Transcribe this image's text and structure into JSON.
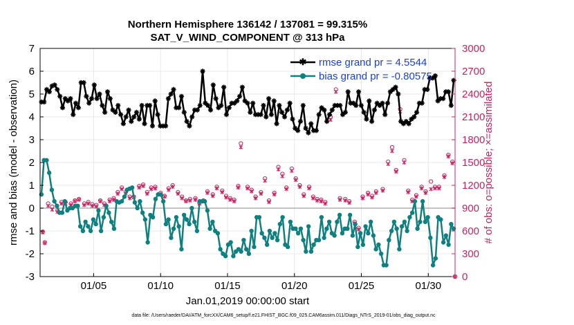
{
  "chart_data": {
    "type": "line",
    "title_line1": "Northern Hemisphere 136142 / 137081 = 99.315%",
    "title_line2": "SAT_V_WIND_COMPONENT @ 313 hPa",
    "xlabel": "Jan.01,2019 00:00:00 start",
    "ylabel_left": "rmse and bias (model - observation)",
    "ylabel_right": "# of obs: o=possible; ×=assimilated",
    "ylim_left": [
      -3,
      7
    ],
    "ylim_right": [
      0,
      3000
    ],
    "yticks_left": [
      "-3",
      "-2",
      "-1",
      "0",
      "1",
      "2",
      "3",
      "4",
      "5",
      "6",
      "7"
    ],
    "yticks_right": [
      "0",
      "300",
      "600",
      "900",
      "1200",
      "1500",
      "1800",
      "2100",
      "2400",
      "2700",
      "3000"
    ],
    "xlim_days": [
      1.0,
      32.0
    ],
    "xtick_days": [
      5,
      10,
      15,
      20,
      25,
      30
    ],
    "xtick_labels": [
      "01/05",
      "01/10",
      "01/15",
      "01/20",
      "01/25",
      "01/30"
    ],
    "footnote": "data file: /Users/raeder/DAI/ATM_forcXX/CAM6_setup/f.e21.FHIST_BGC.f09_025.CAM6assim.011/Diags_NTrS_2019-01/obs_diag_output.nc",
    "colors": {
      "rmse": "#000000",
      "bias": "#0f8080",
      "obs": "#cc1f5e",
      "legend_text": "#1a3fe0",
      "zero_line": "#b0b0b0",
      "grid": "#e8e8e8"
    },
    "series": [
      {
        "name": "rmse",
        "legend": "rmse grand pr = 4.5544",
        "values": [
          4.65,
          4.65,
          5.2,
          5.1,
          5.35,
          5.4,
          5.2,
          4.9,
          4.4,
          4.8,
          4.7,
          4.8,
          4.1,
          4.6,
          4.4,
          5.5,
          5.5,
          4.9,
          4.6,
          4.8,
          5.4,
          4.8,
          5.0,
          4.5,
          4.2,
          5.1,
          4.8,
          4.3,
          4.2,
          4.5,
          4.1,
          3.7,
          4.0,
          4.3,
          3.8,
          4.0,
          4.2,
          3.9,
          4.5,
          3.7,
          4.5,
          4.5,
          3.6,
          4.7,
          4.1,
          3.6,
          3.6,
          3.6,
          4.8,
          5.0,
          5.2,
          4.4,
          4.4,
          4.9,
          4.2,
          3.8,
          3.6,
          4.0,
          4.3,
          4.3,
          4.5,
          6.0,
          4.6,
          4.5,
          4.3,
          5.4,
          4.8,
          4.4,
          4.5,
          5.3,
          4.1,
          4.4,
          4.6,
          4.6,
          4.7,
          4.9,
          5.3,
          4.7,
          4.6,
          4.2,
          4.6,
          4.1,
          4.1,
          4.1,
          4.5,
          4.0,
          4.8,
          4.1,
          4.7,
          3.7,
          4.5,
          4.2,
          4.0,
          4.3,
          4.6,
          3.9,
          3.5,
          3.4,
          3.8,
          4.5,
          3.5,
          3.3,
          3.7,
          3.4,
          3.4,
          4.1,
          4.4,
          4.3,
          3.8,
          4.1,
          4.3,
          4.5,
          4.5,
          4.5,
          4.1,
          4.2,
          5.1,
          4.6,
          4.6,
          4.5,
          5.1,
          4.5,
          4.2,
          3.9,
          4.7,
          3.8,
          4.3,
          4.6,
          4.5,
          4.6,
          4.1,
          4.6,
          5.1,
          5.2,
          5.3,
          5.0,
          3.8,
          3.7,
          3.8,
          3.7,
          3.9,
          4.0,
          4.2,
          4.6,
          4.6,
          5.2,
          5.2,
          5.7,
          5.7,
          5.8,
          4.7,
          4.8,
          4.8,
          5.1,
          5.1,
          4.5,
          5.6
        ]
      },
      {
        "name": "bias",
        "legend": "bias grand pr = -0.80575",
        "values": [
          0.6,
          2.1,
          2.1,
          1.55,
          0.8,
          0.3,
          0.1,
          -0.2,
          -0.2,
          0.3,
          -0.1,
          0.0,
          0.0,
          0.1,
          0.1,
          -0.8,
          -1.0,
          -0.6,
          -0.8,
          -1.0,
          -0.5,
          -0.7,
          -0.1,
          -1.0,
          -0.4,
          0.1,
          -0.2,
          -0.6,
          -0.9,
          0.3,
          0.25,
          0.3,
          0.5,
          0.8,
          0.85,
          0.9,
          0.25,
          0.0,
          0.3,
          -0.2,
          -0.5,
          -1.5,
          -0.3,
          -0.4,
          0.4,
          0.6,
          0.6,
          0.3,
          -0.7,
          -0.5,
          -1.3,
          -0.9,
          -0.4,
          -0.8,
          -1.8,
          -0.3,
          -0.5,
          -0.7,
          0.0,
          -0.6,
          -1.0,
          0.3,
          0.3,
          0.3,
          -0.1,
          -0.9,
          -0.6,
          -1.0,
          -1.1,
          -1.8,
          -2.0,
          -2.1,
          -1.6,
          -1.5,
          -2.1,
          -1.9,
          -1.8,
          -1.9,
          -1.4,
          -1.8,
          -2.0,
          -1.0,
          -1.7,
          -0.4,
          -0.4,
          -1.1,
          -1.3,
          -1.6,
          -1.0,
          -1.3,
          -1.1,
          -1.4,
          -0.7,
          -0.4,
          -1.6,
          -1.7,
          -0.6,
          -0.9,
          -0.9,
          -1.1,
          -0.9,
          -1.4,
          -1.9,
          -0.8,
          -1.9,
          -1.6,
          -1.4,
          -1.4,
          -0.4,
          -1.3,
          -0.9,
          -0.6,
          -1.1,
          -1.2,
          -0.6,
          -0.3,
          -1.1,
          -0.9,
          -0.9,
          -0.3,
          -1.2,
          -0.7,
          -1.7,
          -1.1,
          -1.6,
          -0.8,
          -1.1,
          -0.6,
          -1.2,
          -1.8,
          -1.6,
          -2.0,
          -2.5,
          -2.5,
          -1.4,
          -1.0,
          -0.6,
          -0.9,
          -1.8,
          -0.8,
          -0.6,
          -1.0,
          -0.4,
          -0.2,
          0.3,
          -0.9,
          -0.6,
          0.3,
          -0.6,
          -0.4,
          -1.3,
          -2.5,
          -2.2,
          -0.4,
          -0.5,
          -1.5,
          -1.2,
          -1.6,
          -0.7,
          -0.9
        ]
      }
    ],
    "obs_possible": [
      [
        1.2,
        590
      ],
      [
        1.35,
        450
      ],
      [
        1.6,
        960
      ],
      [
        1.9,
        920
      ],
      [
        2.3,
        870
      ],
      [
        2.6,
        980
      ],
      [
        2.9,
        980
      ],
      [
        3.3,
        960
      ],
      [
        3.6,
        1000
      ],
      [
        3.9,
        1020
      ],
      [
        4.3,
        960
      ],
      [
        4.6,
        980
      ],
      [
        4.9,
        950
      ],
      [
        5.2,
        940
      ],
      [
        5.5,
        1000
      ],
      [
        5.8,
        960
      ],
      [
        6.2,
        1010
      ],
      [
        6.5,
        1030
      ],
      [
        6.8,
        1110
      ],
      [
        7.1,
        1170
      ],
      [
        7.4,
        1110
      ],
      [
        7.7,
        1050
      ],
      [
        8.0,
        1050
      ],
      [
        8.4,
        1190
      ],
      [
        8.7,
        1210
      ],
      [
        9.0,
        1110
      ],
      [
        9.3,
        1170
      ],
      [
        9.6,
        1180
      ],
      [
        10.0,
        1100
      ],
      [
        10.3,
        1060
      ],
      [
        10.6,
        1160
      ],
      [
        10.9,
        1200
      ],
      [
        11.3,
        1110
      ],
      [
        11.6,
        1050
      ],
      [
        11.9,
        1000
      ],
      [
        12.2,
        1020
      ],
      [
        12.6,
        1030
      ],
      [
        12.9,
        970
      ],
      [
        13.2,
        1000
      ],
      [
        13.5,
        1120
      ],
      [
        13.9,
        1080
      ],
      [
        14.2,
        1180
      ],
      [
        14.6,
        1130
      ],
      [
        14.9,
        1060
      ],
      [
        15.2,
        1030
      ],
      [
        15.5,
        1010
      ],
      [
        15.8,
        1190
      ],
      [
        16.0,
        1750
      ],
      [
        16.5,
        1180
      ],
      [
        16.8,
        1140
      ],
      [
        17.1,
        1050
      ],
      [
        17.5,
        1110
      ],
      [
        17.8,
        1290
      ],
      [
        18.1,
        1000
      ],
      [
        18.5,
        1100
      ],
      [
        18.8,
        1440
      ],
      [
        19.1,
        1350
      ],
      [
        19.4,
        1170
      ],
      [
        19.8,
        1420
      ],
      [
        20.1,
        1290
      ],
      [
        20.4,
        1200
      ],
      [
        20.7,
        1080
      ],
      [
        21.1,
        1180
      ],
      [
        21.4,
        1050
      ],
      [
        21.7,
        1020
      ],
      [
        22.0,
        1010
      ],
      [
        22.3,
        980
      ],
      [
        22.7,
        2100
      ],
      [
        23.1,
        2460
      ],
      [
        23.4,
        1030
      ],
      [
        23.8,
        1020
      ],
      [
        24.1,
        990
      ],
      [
        24.5,
        720
      ],
      [
        24.8,
        640
      ],
      [
        25.1,
        1050
      ],
      [
        25.5,
        1100
      ],
      [
        25.8,
        1060
      ],
      [
        26.1,
        1120
      ],
      [
        26.6,
        1150
      ],
      [
        27.0,
        1510
      ],
      [
        27.3,
        1700
      ],
      [
        27.6,
        1400
      ],
      [
        27.9,
        2200
      ],
      [
        28.2,
        1530
      ],
      [
        28.5,
        1130
      ],
      [
        28.8,
        1010
      ],
      [
        29.1,
        1070
      ],
      [
        29.5,
        1180
      ],
      [
        29.8,
        1120
      ],
      [
        30.2,
        1250
      ],
      [
        30.5,
        1180
      ],
      [
        30.8,
        1180
      ],
      [
        31.2,
        1330
      ],
      [
        31.5,
        1600
      ],
      [
        31.8,
        1510
      ],
      [
        32.0,
        0
      ]
    ],
    "obs_assimilated": [
      [
        1.2,
        580
      ],
      [
        1.35,
        440
      ],
      [
        1.6,
        930
      ],
      [
        1.9,
        880
      ],
      [
        2.3,
        850
      ],
      [
        2.6,
        960
      ],
      [
        2.9,
        960
      ],
      [
        3.3,
        940
      ],
      [
        3.6,
        990
      ],
      [
        3.9,
        1010
      ],
      [
        4.3,
        940
      ],
      [
        4.6,
        960
      ],
      [
        4.9,
        930
      ],
      [
        5.2,
        920
      ],
      [
        5.5,
        990
      ],
      [
        5.8,
        940
      ],
      [
        6.2,
        990
      ],
      [
        6.5,
        1010
      ],
      [
        6.8,
        1090
      ],
      [
        7.1,
        1150
      ],
      [
        7.4,
        1090
      ],
      [
        7.7,
        1030
      ],
      [
        8.0,
        1040
      ],
      [
        8.4,
        1170
      ],
      [
        8.7,
        1190
      ],
      [
        9.0,
        1090
      ],
      [
        9.3,
        1150
      ],
      [
        9.6,
        1160
      ],
      [
        10.0,
        1080
      ],
      [
        10.3,
        1050
      ],
      [
        10.6,
        1140
      ],
      [
        10.9,
        1180
      ],
      [
        11.3,
        1090
      ],
      [
        11.6,
        1030
      ],
      [
        11.9,
        990
      ],
      [
        12.2,
        1000
      ],
      [
        12.6,
        1010
      ],
      [
        12.9,
        960
      ],
      [
        13.2,
        990
      ],
      [
        13.5,
        1100
      ],
      [
        13.9,
        1060
      ],
      [
        14.2,
        1160
      ],
      [
        14.6,
        1110
      ],
      [
        14.9,
        1040
      ],
      [
        15.2,
        1010
      ],
      [
        15.5,
        990
      ],
      [
        15.8,
        1170
      ],
      [
        16.0,
        1700
      ],
      [
        16.5,
        1160
      ],
      [
        16.8,
        1120
      ],
      [
        17.1,
        1030
      ],
      [
        17.5,
        1090
      ],
      [
        17.8,
        1260
      ],
      [
        18.1,
        980
      ],
      [
        18.5,
        1080
      ],
      [
        18.8,
        1410
      ],
      [
        19.1,
        1320
      ],
      [
        19.4,
        1150
      ],
      [
        19.8,
        1390
      ],
      [
        20.1,
        1270
      ],
      [
        20.4,
        1180
      ],
      [
        20.7,
        1060
      ],
      [
        21.1,
        1160
      ],
      [
        21.4,
        1030
      ],
      [
        21.7,
        1000
      ],
      [
        22.0,
        990
      ],
      [
        22.3,
        960
      ],
      [
        22.7,
        2060
      ],
      [
        23.1,
        2430
      ],
      [
        23.4,
        1010
      ],
      [
        23.8,
        1000
      ],
      [
        24.1,
        970
      ],
      [
        24.5,
        700
      ],
      [
        24.8,
        620
      ],
      [
        25.1,
        1030
      ],
      [
        25.5,
        1080
      ],
      [
        25.8,
        1040
      ],
      [
        26.1,
        1100
      ],
      [
        26.6,
        1130
      ],
      [
        27.0,
        1480
      ],
      [
        27.3,
        1650
      ],
      [
        27.6,
        1380
      ],
      [
        27.9,
        2170
      ],
      [
        28.2,
        1500
      ],
      [
        28.5,
        1110
      ],
      [
        28.8,
        990
      ],
      [
        29.1,
        1050
      ],
      [
        29.5,
        1160
      ],
      [
        29.8,
        1100
      ],
      [
        30.2,
        1150
      ],
      [
        30.5,
        1160
      ],
      [
        30.8,
        1160
      ],
      [
        31.2,
        1310
      ],
      [
        31.5,
        1580
      ],
      [
        31.8,
        1490
      ],
      [
        32.0,
        0
      ]
    ]
  }
}
